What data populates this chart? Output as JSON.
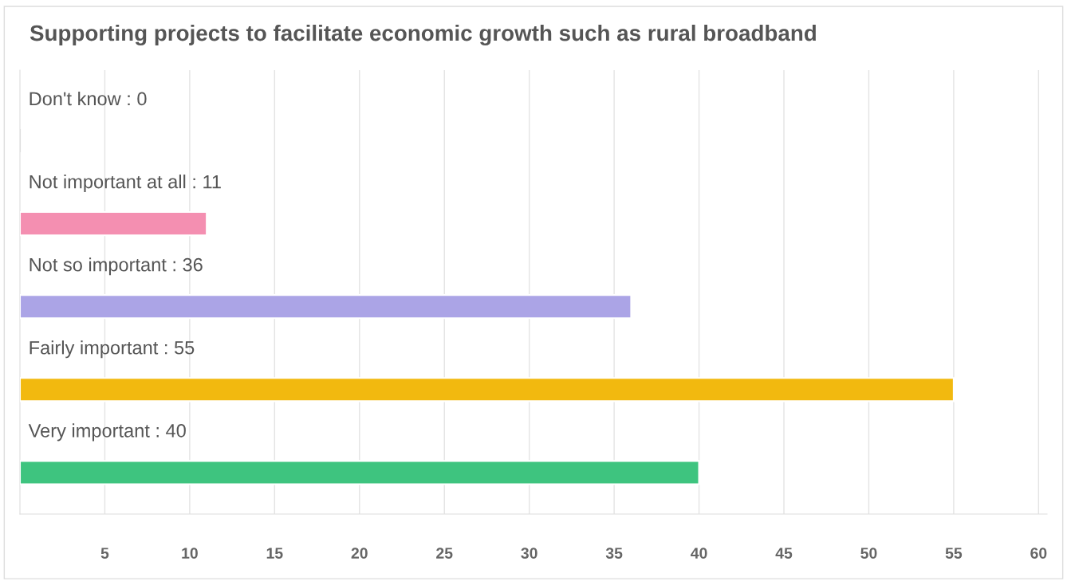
{
  "chart_data": {
    "type": "bar",
    "orientation": "horizontal",
    "title": "Supporting projects to facilitate economic growth such as rural broadband",
    "categories": [
      "Don't know : 0",
      "Not important at all : 11",
      "Not so important : 36",
      "Fairly important : 55",
      "Very important : 40"
    ],
    "values": [
      0,
      11,
      36,
      55,
      40
    ],
    "colors": [
      "#dddddd",
      "#f48fb1",
      "#aba4e6",
      "#f2b90f",
      "#3ec47f"
    ],
    "xlim": [
      0,
      60.5
    ],
    "xticks": [
      5,
      10,
      15,
      20,
      25,
      30,
      35,
      40,
      45,
      50,
      55,
      60
    ],
    "grid": "x",
    "legend": false
  }
}
